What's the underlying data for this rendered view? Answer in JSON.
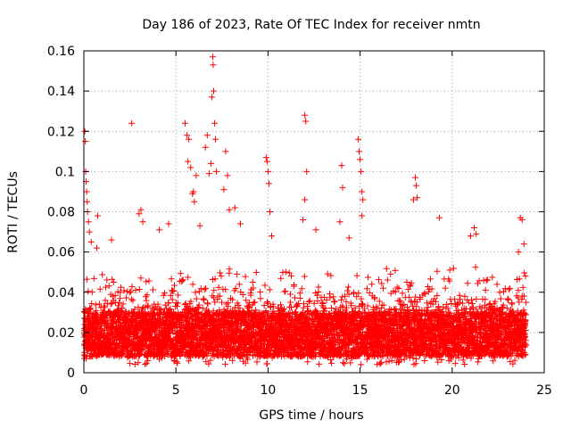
{
  "chart_data": {
    "type": "scatter",
    "title": "Day 186 of 2023, Rate Of TEC Index for receiver nmtn",
    "xlabel": "GPS time / hours",
    "ylabel": "ROTI / TECUs",
    "xlim": [
      0,
      25
    ],
    "ylim": [
      0,
      0.16
    ],
    "xticks": [
      0,
      5,
      10,
      15,
      20,
      25
    ],
    "xtick_labels": [
      "0",
      "5",
      "10",
      "15",
      "20",
      "25"
    ],
    "yticks": [
      0,
      0.02,
      0.04,
      0.06,
      0.08,
      0.1,
      0.12,
      0.14,
      0.16
    ],
    "ytick_labels": [
      "0",
      "0.02",
      "0.04",
      "0.06",
      "0.08",
      "0.1",
      "0.12",
      "0.14",
      "0.16"
    ],
    "grid": true,
    "marker": "plus",
    "color": "#ff0000",
    "series": [
      {
        "name": "ROTI",
        "description_of_bulk": "dense band of points between 0.005 and 0.05 TECU/s across 0–24 h",
        "background_band": {
          "x_range": [
            0.0,
            24.0
          ],
          "step_hours": 0.2,
          "core_range": [
            0.008,
            0.03
          ],
          "upper_range": [
            0.03,
            0.055
          ]
        },
        "outliers": [
          [
            0.05,
            0.12
          ],
          [
            0.08,
            0.115
          ],
          [
            0.1,
            0.1
          ],
          [
            0.12,
            0.095
          ],
          [
            0.15,
            0.09
          ],
          [
            0.18,
            0.085
          ],
          [
            0.2,
            0.08
          ],
          [
            0.25,
            0.075
          ],
          [
            0.3,
            0.07
          ],
          [
            0.4,
            0.065
          ],
          [
            0.7,
            0.062
          ],
          [
            0.75,
            0.078
          ],
          [
            1.5,
            0.066
          ],
          [
            2.6,
            0.124
          ],
          [
            3.0,
            0.079
          ],
          [
            3.1,
            0.081
          ],
          [
            3.2,
            0.075
          ],
          [
            4.1,
            0.071
          ],
          [
            4.6,
            0.074
          ],
          [
            5.5,
            0.124
          ],
          [
            5.6,
            0.118
          ],
          [
            5.7,
            0.116
          ],
          [
            5.65,
            0.105
          ],
          [
            5.8,
            0.102
          ],
          [
            5.9,
            0.089
          ],
          [
            5.95,
            0.09
          ],
          [
            6.0,
            0.085
          ],
          [
            6.1,
            0.098
          ],
          [
            6.3,
            0.073
          ],
          [
            6.6,
            0.112
          ],
          [
            6.7,
            0.118
          ],
          [
            6.8,
            0.099
          ],
          [
            6.9,
            0.104
          ],
          [
            6.95,
            0.137
          ],
          [
            7.0,
            0.157
          ],
          [
            7.02,
            0.153
          ],
          [
            7.05,
            0.14
          ],
          [
            7.1,
            0.124
          ],
          [
            7.15,
            0.116
          ],
          [
            7.2,
            0.1
          ],
          [
            7.6,
            0.091
          ],
          [
            7.7,
            0.11
          ],
          [
            7.8,
            0.098
          ],
          [
            7.9,
            0.081
          ],
          [
            8.2,
            0.082
          ],
          [
            8.5,
            0.074
          ],
          [
            9.9,
            0.107
          ],
          [
            9.95,
            0.105
          ],
          [
            10.0,
            0.1
          ],
          [
            10.05,
            0.094
          ],
          [
            10.1,
            0.08
          ],
          [
            10.2,
            0.068
          ],
          [
            12.0,
            0.128
          ],
          [
            12.05,
            0.125
          ],
          [
            12.1,
            0.1
          ],
          [
            12.0,
            0.086
          ],
          [
            11.9,
            0.076
          ],
          [
            12.6,
            0.071
          ],
          [
            14.0,
            0.103
          ],
          [
            14.05,
            0.092
          ],
          [
            13.9,
            0.075
          ],
          [
            14.4,
            0.067
          ],
          [
            14.9,
            0.116
          ],
          [
            14.95,
            0.11
          ],
          [
            15.0,
            0.106
          ],
          [
            15.05,
            0.1
          ],
          [
            15.1,
            0.09
          ],
          [
            15.15,
            0.086
          ],
          [
            15.1,
            0.078
          ],
          [
            18.0,
            0.097
          ],
          [
            18.05,
            0.093
          ],
          [
            18.1,
            0.087
          ],
          [
            17.9,
            0.086
          ],
          [
            19.3,
            0.077
          ],
          [
            21.2,
            0.072
          ],
          [
            21.3,
            0.069
          ],
          [
            21.0,
            0.068
          ],
          [
            23.7,
            0.077
          ],
          [
            23.8,
            0.076
          ],
          [
            23.9,
            0.064
          ],
          [
            23.6,
            0.06
          ]
        ]
      }
    ]
  }
}
